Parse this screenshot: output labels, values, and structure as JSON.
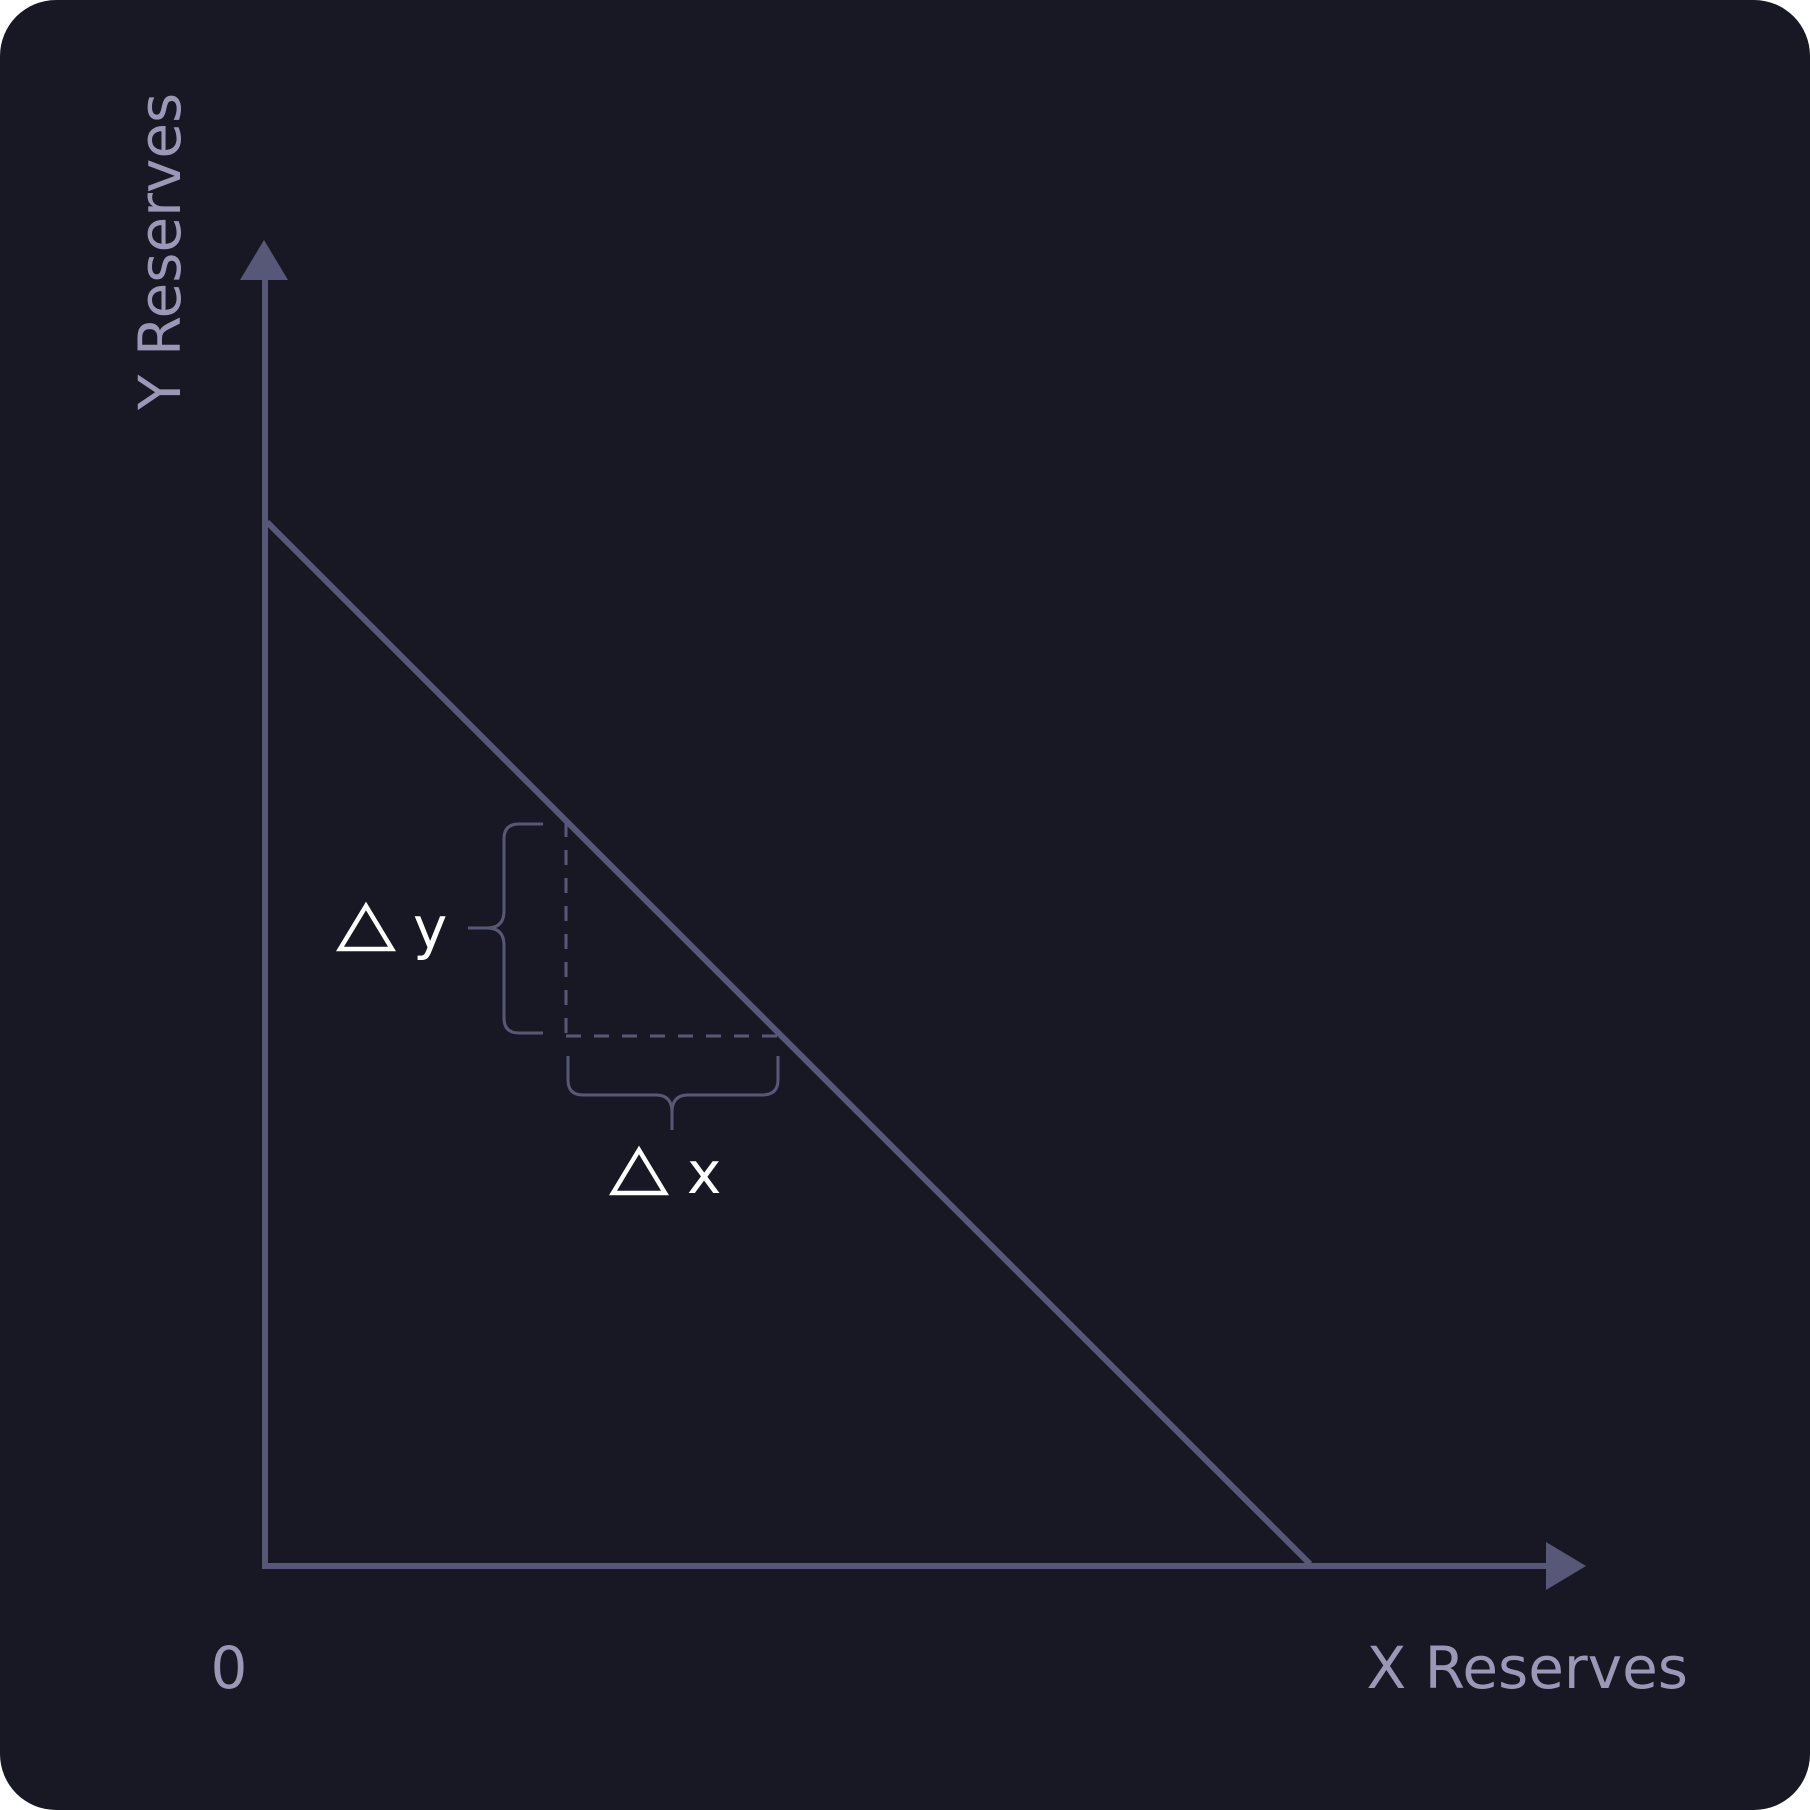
{
  "labels": {
    "y_axis": "Y Reserves",
    "x_axis": "X Reserves",
    "origin": "0",
    "delta_y": "y",
    "delta_x": "x"
  },
  "icons": {
    "delta_y_symbol": "triangle-delta-icon",
    "delta_x_symbol": "triangle-delta-icon"
  },
  "colors": {
    "background": "#181824",
    "line": "#575878",
    "label": "#9b97b6",
    "delta_text": "#ffffff"
  }
}
